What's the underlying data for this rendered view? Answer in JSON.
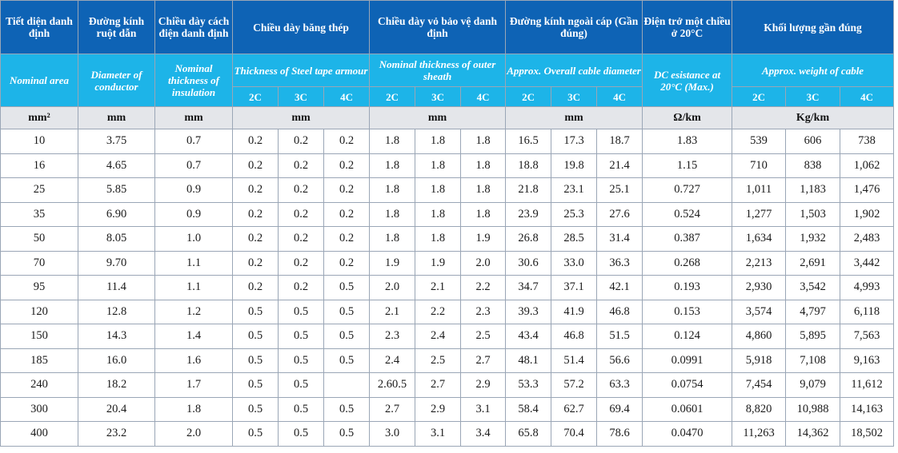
{
  "header_vi": {
    "area": "Tiết diện danh định",
    "diameter": "Đường kính ruột dẫn",
    "insulation": "Chiều dày cách điện danh định",
    "armour": "Chiều dày băng thép",
    "sheath": "Chiều dày vỏ bảo vệ danh định",
    "overall": "Đường kính ngoài cáp (Gần đúng)",
    "resistance": "Điện trở một chiều ở 20°C",
    "weight": "Khối lượng gần đúng"
  },
  "header_en": {
    "area": "Nominal area",
    "diameter": "Diameter of conductor",
    "insulation": "Nominal thickness of insulation",
    "armour": "Thickness of Steel tape armour",
    "sheath": "Nominal thickness of outer sheath",
    "overall": "Approx. Overall cable diameter",
    "resistance": "DC esistance at 20°C (Max.)",
    "weight": "Approx. weight of cable"
  },
  "cores": [
    "2C",
    "3C",
    "4C"
  ],
  "units": {
    "area": "mm²",
    "diameter": "mm",
    "insulation": "mm",
    "armour": "mm",
    "sheath": "mm",
    "overall": "mm",
    "resistance": "Ω/km",
    "weight": "Kg/km"
  },
  "rows": [
    [
      "10",
      "3.75",
      "0.7",
      "0.2",
      "0.2",
      "0.2",
      "1.8",
      "1.8",
      "1.8",
      "16.5",
      "17.3",
      "18.7",
      "1.83",
      "539",
      "606",
      "738"
    ],
    [
      "16",
      "4.65",
      "0.7",
      "0.2",
      "0.2",
      "0.2",
      "1.8",
      "1.8",
      "1.8",
      "18.8",
      "19.8",
      "21.4",
      "1.15",
      "710",
      "838",
      "1,062"
    ],
    [
      "25",
      "5.85",
      "0.9",
      "0.2",
      "0.2",
      "0.2",
      "1.8",
      "1.8",
      "1.8",
      "21.8",
      "23.1",
      "25.1",
      "0.727",
      "1,011",
      "1,183",
      "1,476"
    ],
    [
      "35",
      "6.90",
      "0.9",
      "0.2",
      "0.2",
      "0.2",
      "1.8",
      "1.8",
      "1.8",
      "23.9",
      "25.3",
      "27.6",
      "0.524",
      "1,277",
      "1,503",
      "1,902"
    ],
    [
      "50",
      "8.05",
      "1.0",
      "0.2",
      "0.2",
      "0.2",
      "1.8",
      "1.8",
      "1.9",
      "26.8",
      "28.5",
      "31.4",
      "0.387",
      "1,634",
      "1,932",
      "2,483"
    ],
    [
      "70",
      "9.70",
      "1.1",
      "0.2",
      "0.2",
      "0.2",
      "1.9",
      "1.9",
      "2.0",
      "30.6",
      "33.0",
      "36.3",
      "0.268",
      "2,213",
      "2,691",
      "3,442"
    ],
    [
      "95",
      "11.4",
      "1.1",
      "0.2",
      "0.2",
      "0.5",
      "2.0",
      "2.1",
      "2.2",
      "34.7",
      "37.1",
      "42.1",
      "0.193",
      "2,930",
      "3,542",
      "4,993"
    ],
    [
      "120",
      "12.8",
      "1.2",
      "0.5",
      "0.5",
      "0.5",
      "2.1",
      "2.2",
      "2.3",
      "39.3",
      "41.9",
      "46.8",
      "0.153",
      "3,574",
      "4,797",
      "6,118"
    ],
    [
      "150",
      "14.3",
      "1.4",
      "0.5",
      "0.5",
      "0.5",
      "2.3",
      "2.4",
      "2.5",
      "43.4",
      "46.8",
      "51.5",
      "0.124",
      "4,860",
      "5,895",
      "7,563"
    ],
    [
      "185",
      "16.0",
      "1.6",
      "0.5",
      "0.5",
      "0.5",
      "2.4",
      "2.5",
      "2.7",
      "48.1",
      "51.4",
      "56.6",
      "0.0991",
      "5,918",
      "7,108",
      "9,163"
    ],
    [
      "240",
      "18.2",
      "1.7",
      "0.5",
      "0.5",
      "",
      "2.60.5",
      "2.7",
      "2.9",
      "53.3",
      "57.2",
      "63.3",
      "0.0754",
      "7,454",
      "9,079",
      "11,612"
    ],
    [
      "300",
      "20.4",
      "1.8",
      "0.5",
      "0.5",
      "0.5",
      "2.7",
      "2.9",
      "3.1",
      "58.4",
      "62.7",
      "69.4",
      "0.0601",
      "8,820",
      "10,988",
      "14,163"
    ],
    [
      "400",
      "23.2",
      "2.0",
      "0.5",
      "0.5",
      "0.5",
      "3.0",
      "3.1",
      "3.4",
      "65.8",
      "70.4",
      "78.6",
      "0.0470",
      "11,263",
      "14,362",
      "18,502"
    ]
  ]
}
